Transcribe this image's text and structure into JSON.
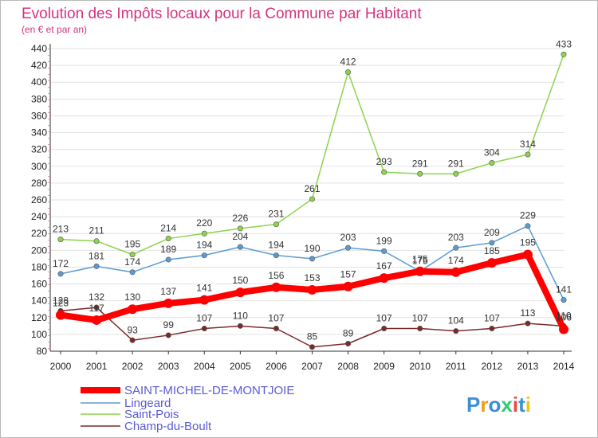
{
  "chart_data": {
    "type": "line",
    "title": "Evolution des Impôts locaux pour la Commune par Habitant",
    "subtitle": "(en € et par an)",
    "x": [
      "2000",
      "2001",
      "2002",
      "2003",
      "2004",
      "2005",
      "2006",
      "2007",
      "2008",
      "2009",
      "2010",
      "2011",
      "2012",
      "2013",
      "2014"
    ],
    "ylim": [
      80,
      440
    ],
    "yticks": [
      80,
      100,
      120,
      140,
      160,
      180,
      200,
      220,
      240,
      260,
      280,
      300,
      320,
      340,
      360,
      380,
      400,
      420,
      440
    ],
    "series": [
      {
        "name": "SAINT-MICHEL-DE-MONTJOIE",
        "color": "#ff0000",
        "values": [
          123,
          117,
          130,
          137,
          141,
          150,
          156,
          153,
          157,
          167,
          175,
          174,
          185,
          195,
          106
        ],
        "labels": [
          "123",
          "117",
          "130",
          "137",
          "141",
          "150",
          "156",
          "153",
          "157",
          "167",
          "175",
          "174",
          "185",
          "195",
          "106"
        ]
      },
      {
        "name": "Lingeard",
        "color": "#5b9bd5",
        "values": [
          172,
          181,
          174,
          189,
          194,
          204,
          194,
          190,
          203,
          199,
          175,
          203,
          209,
          229,
          141
        ],
        "labels": [
          "172",
          "181",
          "174",
          "189",
          "194",
          "204",
          "194",
          "190",
          "203",
          "199",
          "175",
          "203",
          "209",
          "229",
          "141"
        ]
      },
      {
        "name": "Saint-Pois",
        "color": "#8cd44c",
        "values": [
          213,
          211,
          195,
          214,
          220,
          226,
          231,
          261,
          412,
          293,
          291,
          291,
          304,
          314,
          433
        ],
        "labels": [
          "213",
          "211",
          "195",
          "214",
          "220",
          "226",
          "231",
          "261",
          "412",
          "293",
          "291",
          "291",
          "304",
          "314",
          "433"
        ]
      },
      {
        "name": "Champ-du-Boult",
        "color": "#7b2a2a",
        "values": [
          128,
          132,
          93,
          99,
          107,
          110,
          107,
          85,
          89,
          107,
          107,
          104,
          107,
          113,
          110
        ],
        "labels": [
          "128",
          "132",
          "93",
          "99",
          "107",
          "110",
          "107",
          "85",
          "89",
          "107",
          "107",
          "104",
          "107",
          "113",
          "110"
        ]
      }
    ]
  },
  "legend": {
    "items": [
      "SAINT-MICHEL-DE-MONTJOIE",
      "Lingeard",
      "Saint-Pois",
      "Champ-du-Boult"
    ]
  },
  "logo": {
    "text": "Proxiti"
  }
}
